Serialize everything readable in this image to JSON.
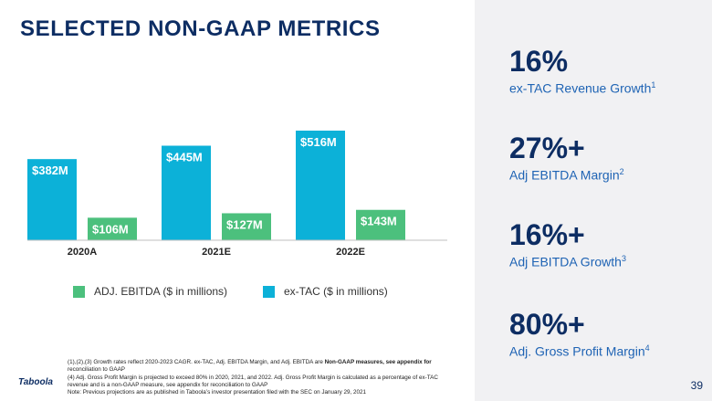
{
  "slide": {
    "title": "SELECTED NON-GAAP METRICS",
    "page_number": "39",
    "logo_text": "Taboola"
  },
  "metrics": [
    {
      "value": "16%",
      "label": "ex-TAC Revenue Growth",
      "sup": "1"
    },
    {
      "value": "27%+",
      "label": "Adj EBITDA Margin",
      "sup": "2"
    },
    {
      "value": "16%+",
      "label": "Adj EBITDA Growth",
      "sup": "3"
    },
    {
      "value": "80%+",
      "label": "Adj. Gross Profit Margin",
      "sup": "4"
    }
  ],
  "legend": {
    "ebitda": "ADJ. EBITDA ($ in millions)",
    "extac": "ex-TAC ($ in millions)"
  },
  "footnotes": {
    "line1_a": "(1),(2),(3) Growth rates reflect 2020-2023 CAGR. ex-TAC, Adj. EBITDA Margin, and Adj. EBITDA are ",
    "line1_b": "Non-GAAP measures, see appendix for",
    "line2": "reconciliation to GAAP",
    "line3": "(4) Adj. Gross Profit Margin is projected to exceed 80% in 2020, 2021, and 2022. Adj. Gross Profit Margin is calculated as a percentage of ex-TAC",
    "line4": "revenue and is a non-GAAP measure, see appendix for reconciliation to GAAP",
    "line5": "Note: Previous projections are as published in Taboola’s investor presentation filed with the SEC on January 29, 2021"
  },
  "colors": {
    "extac": "#0cb1d8",
    "ebitda": "#4cc07d",
    "navy": "#0d2d63",
    "blue": "#1e63b4"
  },
  "chart_data": {
    "type": "bar",
    "categories": [
      "2020A",
      "2021E",
      "2022E"
    ],
    "series": [
      {
        "name": "ex-TAC ($ in millions)",
        "values": [
          382,
          445,
          516
        ],
        "labels": [
          "$382M",
          "$445M",
          "$516M"
        ]
      },
      {
        "name": "ADJ. EBITDA ($ in millions)",
        "values": [
          106,
          127,
          143
        ],
        "labels": [
          "$106M",
          "$127M",
          "$143M"
        ]
      }
    ],
    "ylim": [
      0,
      516
    ],
    "baseline_min": 0,
    "grid": false,
    "legend_position": "bottom"
  }
}
